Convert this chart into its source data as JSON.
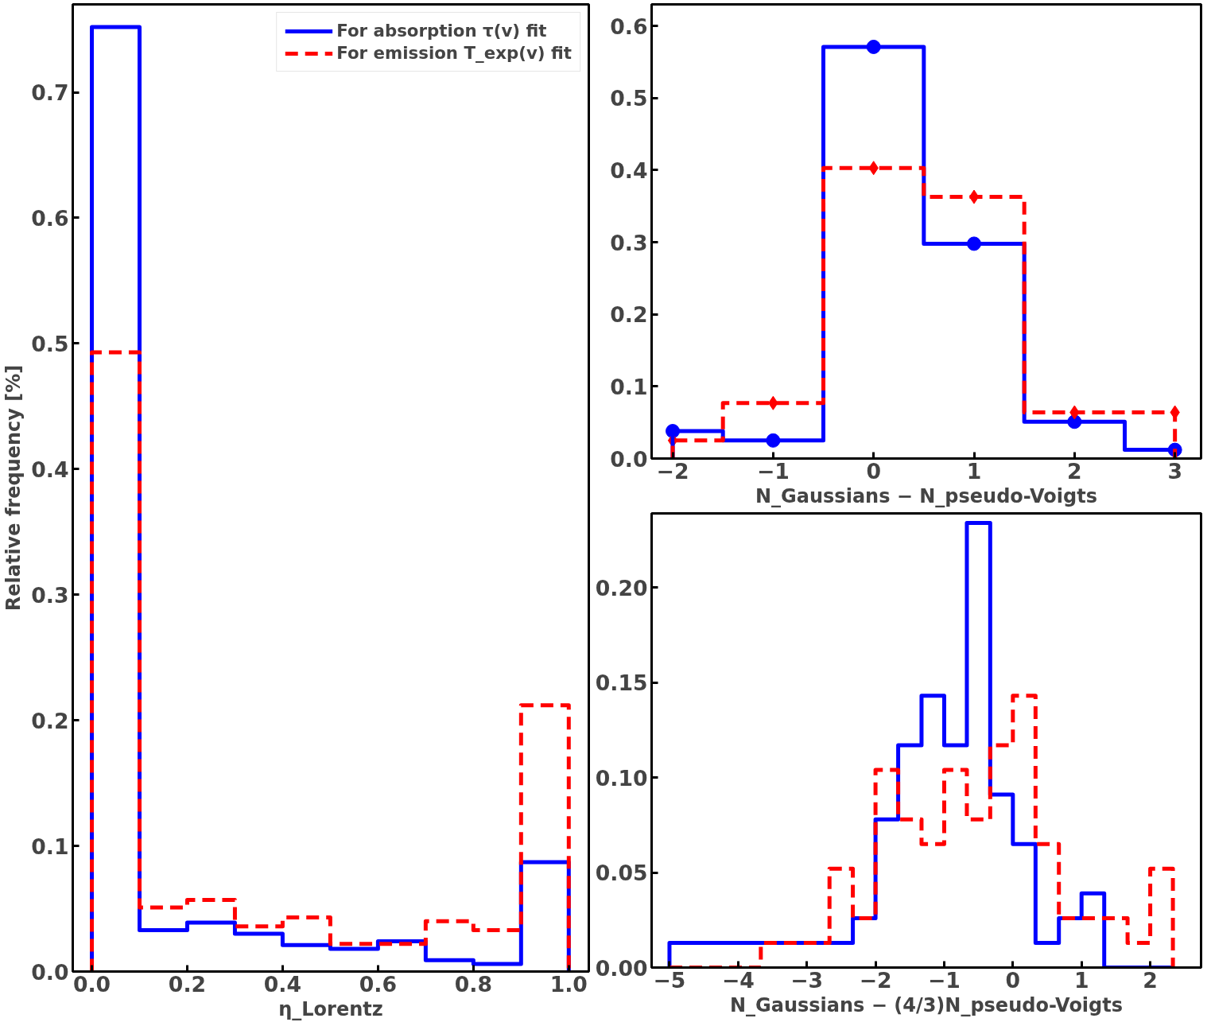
{
  "chart_data": [
    {
      "type": "histogram",
      "xlabel": "η_Lorentz",
      "ylabel": "Relative frequency [%]",
      "bins": [
        0,
        0.1,
        0.2,
        0.3,
        0.4,
        0.5,
        0.6,
        0.7,
        0.8,
        0.9,
        1.0
      ],
      "xlim": [
        -0.04,
        1.042
      ],
      "ylim": [
        0,
        0.77
      ],
      "xticks": [
        {
          "value": 0,
          "label": "0.0"
        },
        0.2,
        0.4,
        0.6,
        0.8,
        {
          "value": 1,
          "label": "1.0"
        }
      ],
      "yticks": [
        {
          "value": 0,
          "label": "0.0"
        },
        0.1,
        0.2,
        0.3,
        0.4,
        0.5,
        0.6,
        0.7
      ],
      "legend": "top right",
      "grid": false,
      "series": [
        {
          "name": "For absorption τ(v) fit",
          "color": "#0000ff",
          "line_style": "solid",
          "values": [
            0.752,
            0.033,
            0.039,
            0.03,
            0.021,
            0.018,
            0.024,
            0.009,
            0.006,
            0.087
          ]
        },
        {
          "name": "For emission T_exp(v) fit",
          "color": "#ff0000",
          "line_style": "dashed",
          "values": [
            0.493,
            0.051,
            0.057,
            0.036,
            0.043,
            0.022,
            0.022,
            0.04,
            0.033,
            0.212
          ]
        }
      ]
    },
    {
      "type": "histogram",
      "xlabel": "N_Gaussians − N_pseudo-Voigts",
      "bins": [
        -2,
        -1.5,
        -0.5,
        0.5,
        1.5,
        2.5,
        3
      ],
      "xlim": [
        -2.21,
        3.26
      ],
      "ylim": [
        0,
        0.63
      ],
      "xticks": [
        {
          "value": -2,
          "label": "−2"
        },
        {
          "value": -1,
          "label": "−1"
        },
        0,
        1,
        2,
        3
      ],
      "yticks": [
        {
          "value": 0,
          "label": "0.0"
        },
        0.1,
        0.2,
        0.3,
        0.4,
        0.5,
        0.6
      ],
      "legend": false,
      "grid": false,
      "series": [
        {
          "type": "scatter",
          "marker": "circle",
          "color": "#0000ff",
          "x": [
            -2,
            -1,
            0,
            1,
            2,
            3
          ],
          "values": [
            0.038,
            0.025,
            0.571,
            0.298,
            0.051,
            0.012
          ]
        },
        {
          "type": "scatter",
          "marker": "diamond",
          "color": "#ff0000",
          "x": [
            -2,
            -1,
            0,
            1,
            2,
            3
          ],
          "values": [
            0.025,
            0.077,
            0.403,
            0.363,
            0.064,
            0.064
          ]
        },
        {
          "color": "#0000ff",
          "line_style": "solid",
          "values": [
            0.038,
            0.025,
            0.571,
            0.298,
            0.051,
            0.012
          ]
        },
        {
          "color": "#ff0000",
          "line_style": "dashed",
          "values": [
            0.025,
            0.077,
            0.403,
            0.363,
            0.064,
            0.064
          ]
        }
      ]
    },
    {
      "type": "histogram",
      "xlabel": "N_Gaussians − (4/3)N_pseudo-Voigts",
      "bins": [
        -5,
        -4.67,
        -4.33,
        -4,
        -3.67,
        -3.33,
        -3,
        -2.67,
        -2.33,
        -2,
        -1.67,
        -1.33,
        -1,
        -0.67,
        -0.33,
        0,
        0.33,
        0.67,
        1,
        1.33,
        1.67,
        2,
        2.33
      ],
      "xlim": [
        -5.26,
        2.74
      ],
      "ylim": [
        0,
        0.239
      ],
      "xticks": [
        {
          "value": -5,
          "label": "−5"
        },
        {
          "value": -4,
          "label": "−4"
        },
        {
          "value": -3,
          "label": "−3"
        },
        {
          "value": -2,
          "label": "−2"
        },
        {
          "value": -1,
          "label": "−1"
        },
        0,
        1,
        2
      ],
      "yticks": [
        {
          "value": 0,
          "label": "0.00"
        },
        0.05,
        {
          "value": 0.1,
          "label": "0.10"
        },
        0.15,
        {
          "value": 0.2,
          "label": "0.20"
        }
      ],
      "legend": false,
      "grid": false,
      "series": [
        {
          "color": "#0000ff",
          "line_style": "solid",
          "values": [
            0.013,
            0.013,
            0.013,
            0.013,
            0.013,
            0.013,
            0.013,
            0.013,
            0.026,
            0.078,
            0.117,
            0.143,
            0.117,
            0.234,
            0.091,
            0.065,
            0.013,
            0.026,
            0.039,
            0,
            0,
            0
          ]
        },
        {
          "color": "#ff0000",
          "line_style": "dashed",
          "values": [
            0,
            0,
            0,
            0,
            0.013,
            0.013,
            0.013,
            0.052,
            0.026,
            0.104,
            0.078,
            0.065,
            0.104,
            0.078,
            0.117,
            0.143,
            0.065,
            0.026,
            0.026,
            0.026,
            0.013,
            0.052
          ]
        }
      ]
    }
  ]
}
